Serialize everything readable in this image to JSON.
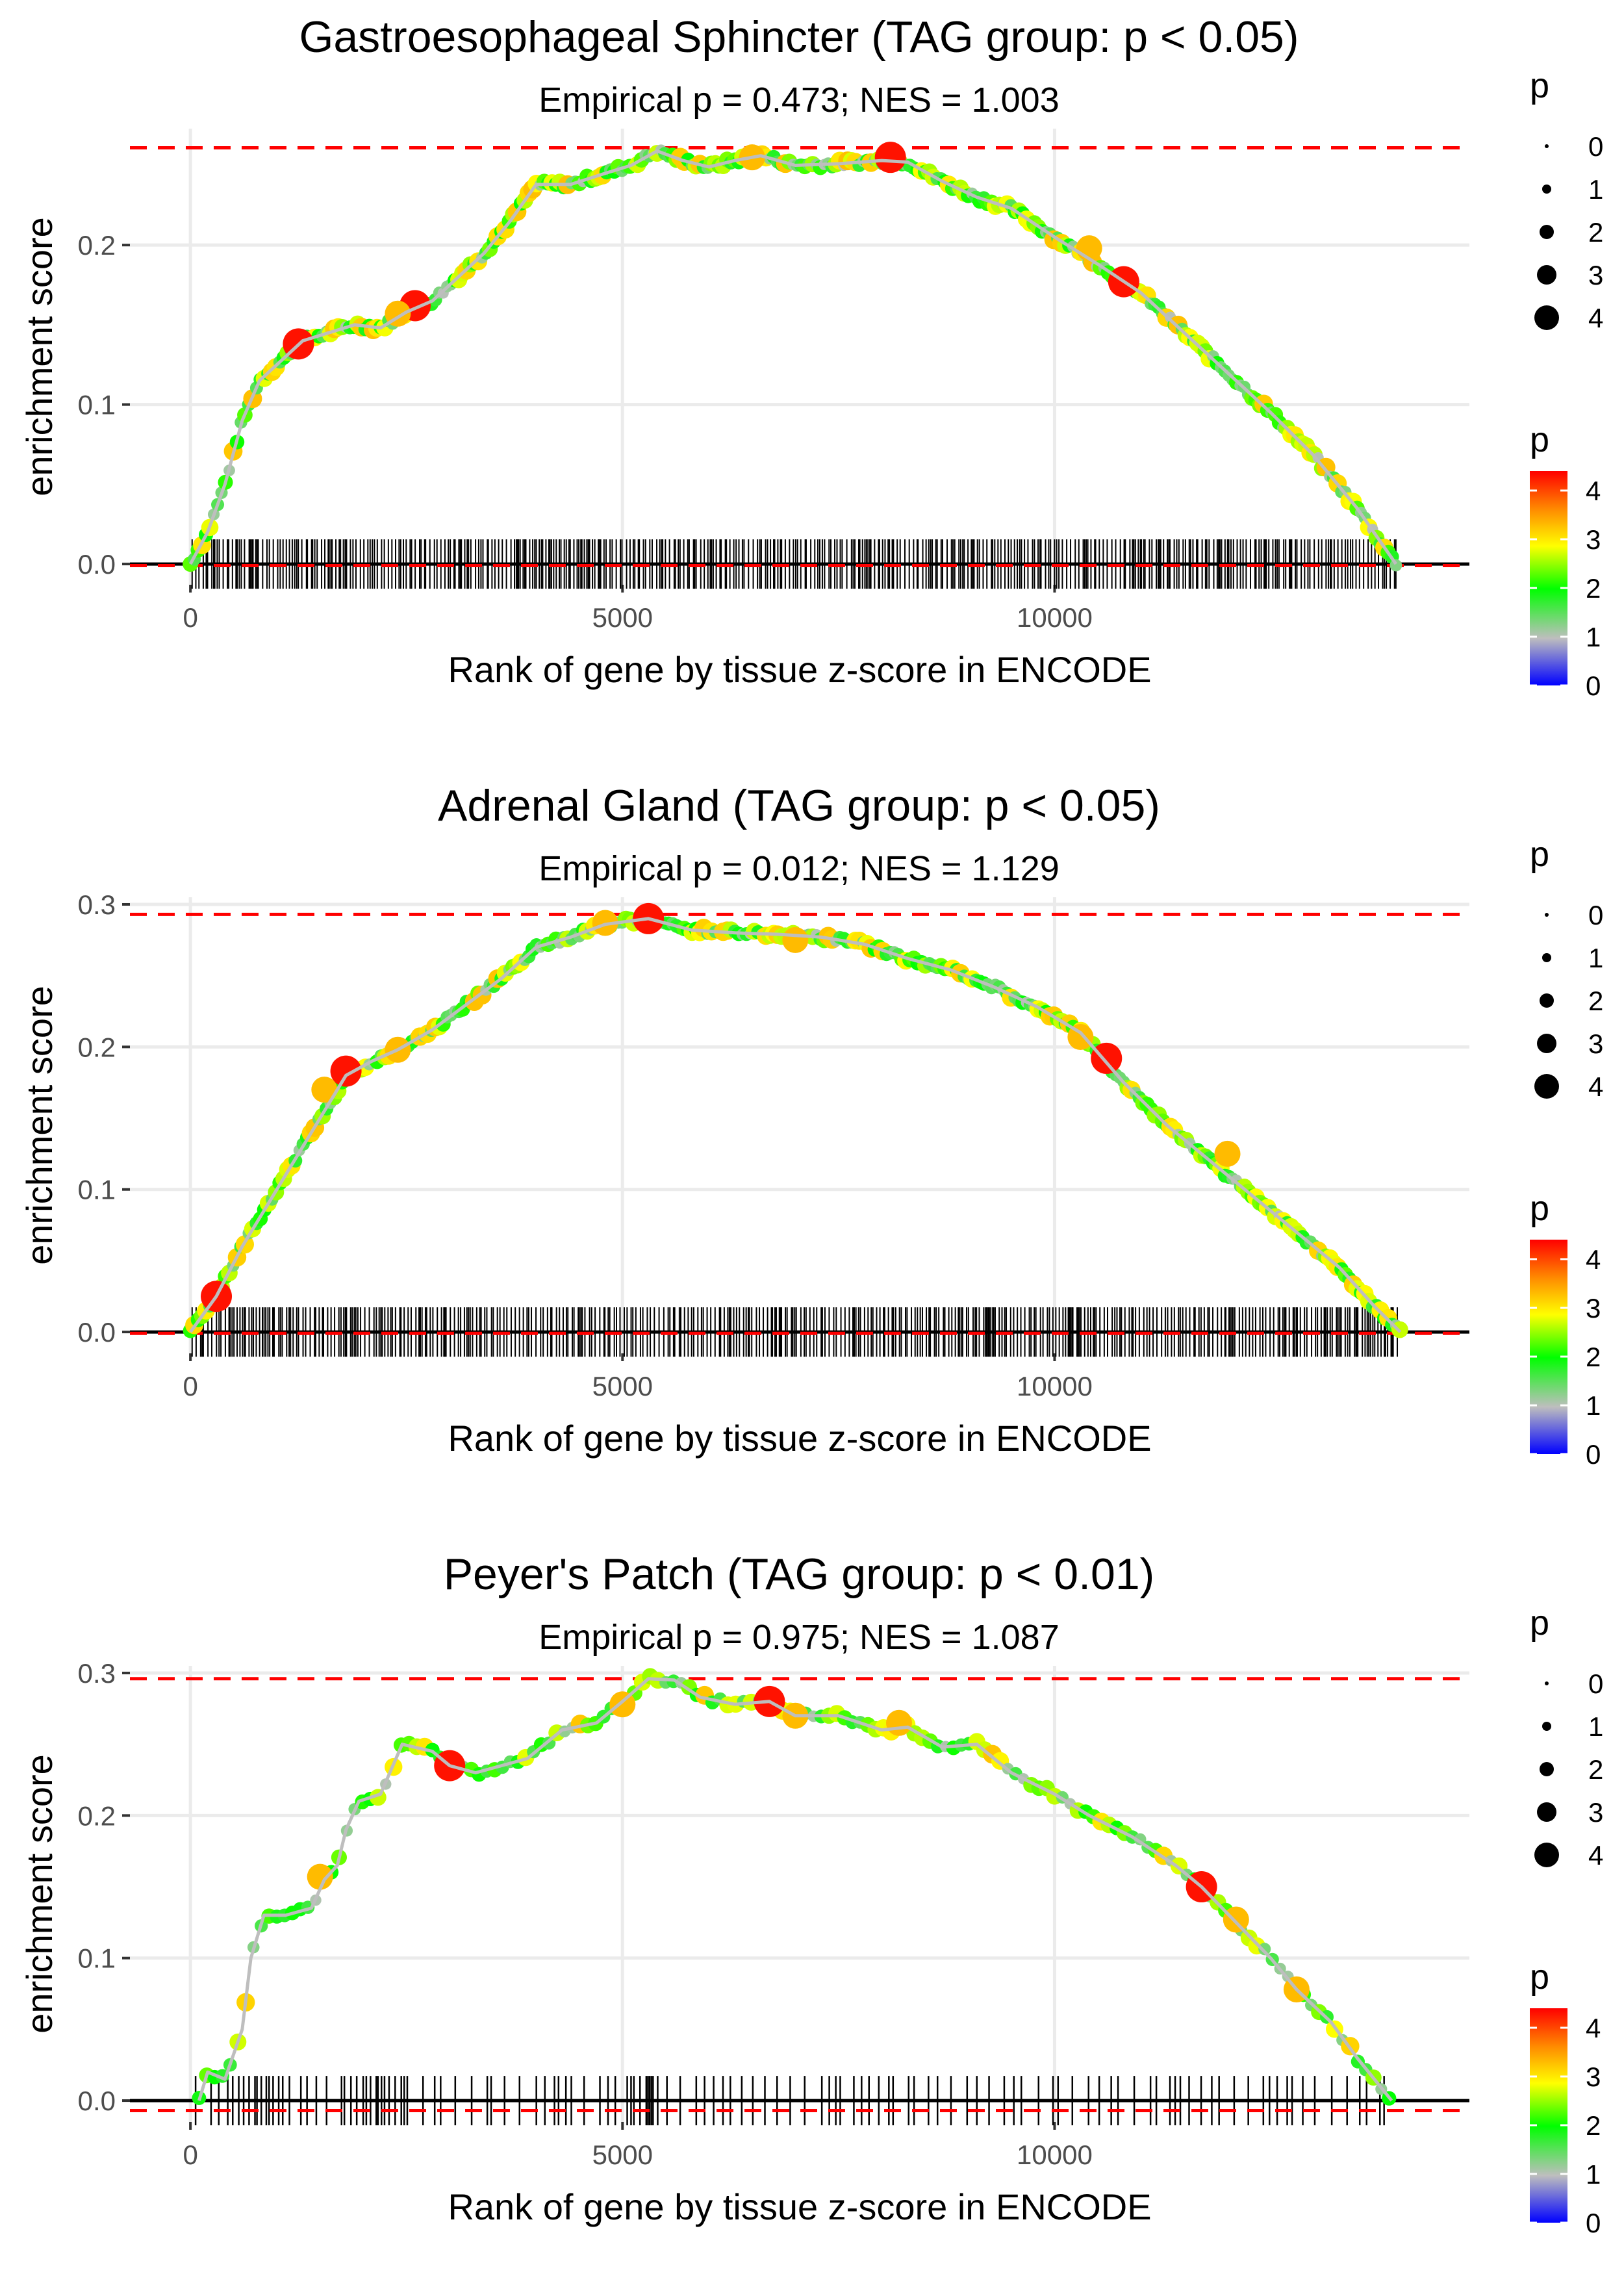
{
  "colors": {
    "curve_line": "#bebebe",
    "rug": "#000000",
    "dashed_max": "#ff0000",
    "grid": "#ebebeb",
    "gradient": [
      "#0000ff",
      "#bebebe",
      "#00ff00",
      "#ffff00",
      "#ff8c00",
      "#ff0000"
    ]
  },
  "legend_text": {
    "size_title": "p",
    "color_title": "p",
    "size_labels": [
      "0",
      "1",
      "2",
      "3",
      "4"
    ],
    "color_labels": [
      "4",
      "3",
      "2",
      "1",
      "0"
    ]
  },
  "chart_data": [
    {
      "type": "line",
      "title": "Gastroesophageal Sphincter (TAG group: p < 0.05)",
      "subtitle": "Empirical p = 0.473; NES = 1.003",
      "xlabel": "Rank of gene by tissue z-score in ENCODE",
      "ylabel": "enrichment score",
      "xlim": [
        -700,
        14800
      ],
      "ylim": [
        -0.013,
        0.273
      ],
      "xticks": [
        0,
        5000,
        10000
      ],
      "xtick_labels": [
        "0",
        "5000",
        "10000"
      ],
      "yticks": [
        0.0,
        0.1,
        0.2
      ],
      "ytick_labels": [
        "0.0",
        "0.1",
        "0.2"
      ],
      "max_es_line": 0.261,
      "min_es_line": -0.001,
      "rug_density": "dense",
      "curve": [
        [
          0,
          0
        ],
        [
          200,
          0.02
        ],
        [
          400,
          0.05
        ],
        [
          600,
          0.09
        ],
        [
          800,
          0.115
        ],
        [
          1000,
          0.125
        ],
        [
          1300,
          0.14
        ],
        [
          1600,
          0.145
        ],
        [
          1900,
          0.15
        ],
        [
          2200,
          0.148
        ],
        [
          2500,
          0.158
        ],
        [
          2800,
          0.165
        ],
        [
          3100,
          0.18
        ],
        [
          3400,
          0.195
        ],
        [
          3700,
          0.215
        ],
        [
          4000,
          0.238
        ],
        [
          4400,
          0.238
        ],
        [
          4800,
          0.245
        ],
        [
          5100,
          0.25
        ],
        [
          5400,
          0.259
        ],
        [
          5700,
          0.253
        ],
        [
          6000,
          0.249
        ],
        [
          6300,
          0.253
        ],
        [
          6600,
          0.256
        ],
        [
          7000,
          0.25
        ],
        [
          7500,
          0.251
        ],
        [
          8000,
          0.253
        ],
        [
          8300,
          0.252
        ],
        [
          8700,
          0.24
        ],
        [
          9100,
          0.23
        ],
        [
          9500,
          0.223
        ],
        [
          10000,
          0.205
        ],
        [
          10500,
          0.188
        ],
        [
          11000,
          0.17
        ],
        [
          11500,
          0.145
        ],
        [
          12000,
          0.12
        ],
        [
          12500,
          0.095
        ],
        [
          13000,
          0.068
        ],
        [
          13500,
          0.035
        ],
        [
          13950,
          0.0
        ]
      ],
      "highlight_points": [
        [
          1250,
          0.138,
          4
        ],
        [
          2600,
          0.162,
          4
        ],
        [
          2400,
          0.157,
          3
        ],
        [
          8100,
          0.255,
          4
        ],
        [
          10400,
          0.198,
          3
        ],
        [
          10800,
          0.177,
          4
        ],
        [
          6500,
          0.255,
          3
        ]
      ]
    },
    {
      "type": "line",
      "title": "Adrenal Gland (TAG group: p < 0.05)",
      "subtitle": "Empirical p = 0.012; NES = 1.129",
      "xlabel": "Rank of gene by tissue z-score in ENCODE",
      "ylabel": "enrichment score",
      "xlim": [
        -700,
        14800
      ],
      "ylim": [
        -0.015,
        0.305
      ],
      "xticks": [
        0,
        5000,
        10000
      ],
      "xtick_labels": [
        "0",
        "5000",
        "10000"
      ],
      "yticks": [
        0.0,
        0.1,
        0.2,
        0.3
      ],
      "ytick_labels": [
        "0.0",
        "0.1",
        "0.2",
        "0.3"
      ],
      "max_es_line": 0.293,
      "min_es_line": -0.001,
      "rug_density": "dense",
      "curve": [
        [
          0,
          0
        ],
        [
          300,
          0.025
        ],
        [
          600,
          0.06
        ],
        [
          900,
          0.09
        ],
        [
          1200,
          0.12
        ],
        [
          1500,
          0.15
        ],
        [
          1800,
          0.18
        ],
        [
          2100,
          0.19
        ],
        [
          2400,
          0.198
        ],
        [
          2800,
          0.212
        ],
        [
          3200,
          0.23
        ],
        [
          3600,
          0.248
        ],
        [
          4000,
          0.27
        ],
        [
          4400,
          0.277
        ],
        [
          4800,
          0.286
        ],
        [
          5300,
          0.29
        ],
        [
          5800,
          0.282
        ],
        [
          6300,
          0.28
        ],
        [
          6800,
          0.279
        ],
        [
          7300,
          0.277
        ],
        [
          7800,
          0.272
        ],
        [
          8300,
          0.262
        ],
        [
          8800,
          0.254
        ],
        [
          9300,
          0.242
        ],
        [
          9800,
          0.228
        ],
        [
          10300,
          0.21
        ],
        [
          10800,
          0.175
        ],
        [
          11300,
          0.145
        ],
        [
          11800,
          0.12
        ],
        [
          12300,
          0.095
        ],
        [
          12800,
          0.07
        ],
        [
          13300,
          0.045
        ],
        [
          13700,
          0.018
        ],
        [
          14000,
          0.0
        ]
      ],
      "highlight_points": [
        [
          300,
          0.025,
          4
        ],
        [
          1800,
          0.183,
          4
        ],
        [
          1550,
          0.17,
          3
        ],
        [
          2400,
          0.198,
          3
        ],
        [
          5300,
          0.29,
          4
        ],
        [
          4800,
          0.287,
          3
        ],
        [
          7000,
          0.275,
          3
        ],
        [
          10600,
          0.192,
          4
        ],
        [
          10300,
          0.207,
          3
        ],
        [
          12000,
          0.125,
          3
        ]
      ]
    },
    {
      "type": "line",
      "title": "Peyer's Patch (TAG group: p < 0.01)",
      "subtitle": "Empirical p = 0.975; NES = 1.087",
      "xlabel": "Rank of gene by tissue z-score in ENCODE",
      "ylabel": "enrichment score",
      "xlim": [
        -700,
        14800
      ],
      "ylim": [
        -0.015,
        0.305
      ],
      "xticks": [
        0,
        5000,
        10000
      ],
      "xtick_labels": [
        "0",
        "5000",
        "10000"
      ],
      "yticks": [
        0.0,
        0.1,
        0.2,
        0.3
      ],
      "ytick_labels": [
        "0.0",
        "0.1",
        "0.2",
        "0.3"
      ],
      "max_es_line": 0.296,
      "min_es_line": -0.007,
      "rug_density": "sparse",
      "curve": [
        [
          100,
          0.0
        ],
        [
          200,
          0.02
        ],
        [
          400,
          0.015
        ],
        [
          600,
          0.05
        ],
        [
          700,
          0.1
        ],
        [
          850,
          0.13
        ],
        [
          1100,
          0.13
        ],
        [
          1400,
          0.135
        ],
        [
          1550,
          0.155
        ],
        [
          1700,
          0.165
        ],
        [
          1800,
          0.19
        ],
        [
          1950,
          0.21
        ],
        [
          2200,
          0.215
        ],
        [
          2450,
          0.25
        ],
        [
          2800,
          0.245
        ],
        [
          3000,
          0.235
        ],
        [
          3300,
          0.23
        ],
        [
          3600,
          0.235
        ],
        [
          3900,
          0.24
        ],
        [
          4300,
          0.26
        ],
        [
          4700,
          0.265
        ],
        [
          5000,
          0.28
        ],
        [
          5300,
          0.296
        ],
        [
          5600,
          0.295
        ],
        [
          5900,
          0.283
        ],
        [
          6300,
          0.278
        ],
        [
          6700,
          0.28
        ],
        [
          7000,
          0.27
        ],
        [
          7500,
          0.27
        ],
        [
          8000,
          0.26
        ],
        [
          8300,
          0.262
        ],
        [
          8700,
          0.248
        ],
        [
          9100,
          0.25
        ],
        [
          9500,
          0.23
        ],
        [
          10000,
          0.215
        ],
        [
          10400,
          0.2
        ],
        [
          10900,
          0.185
        ],
        [
          11400,
          0.165
        ],
        [
          11700,
          0.15
        ],
        [
          12100,
          0.125
        ],
        [
          12500,
          0.1
        ],
        [
          12800,
          0.078
        ],
        [
          13200,
          0.055
        ],
        [
          13500,
          0.03
        ],
        [
          13900,
          0.0
        ]
      ],
      "highlight_points": [
        [
          1500,
          0.157,
          3
        ],
        [
          3000,
          0.235,
          4
        ],
        [
          5000,
          0.278,
          3
        ],
        [
          6700,
          0.28,
          4
        ],
        [
          7000,
          0.27,
          3
        ],
        [
          8200,
          0.265,
          3
        ],
        [
          11700,
          0.15,
          4
        ],
        [
          12100,
          0.127,
          3
        ],
        [
          12800,
          0.078,
          3
        ]
      ]
    }
  ]
}
